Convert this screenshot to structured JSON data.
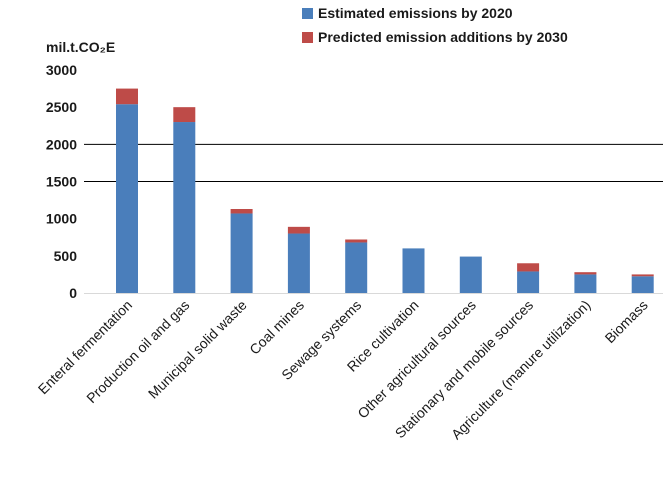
{
  "chart_data": {
    "type": "bar",
    "stacked": true,
    "unit_label": "mil.t.CO₂E",
    "categories": [
      "Enteral fermentation",
      "Production oil and gas",
      "Municipal solid waste",
      "Coal mines",
      "Sewage systems",
      "Rice cultivation",
      "Other agricultural sources",
      "Stationary and mobile sources",
      "Agriculture (manure utilization)",
      "Biomass"
    ],
    "series": [
      {
        "name": "Estimated emissions by 2020",
        "color": "#4a7ebb",
        "values": [
          2540,
          2300,
          1070,
          800,
          680,
          600,
          490,
          290,
          250,
          225
        ]
      },
      {
        "name": "Predicted emission additions by 2030",
        "color": "#be4b48",
        "values": [
          210,
          200,
          60,
          90,
          40,
          0,
          0,
          110,
          30,
          25
        ]
      }
    ],
    "ylim": [
      0,
      3000
    ],
    "yticks": [
      0,
      500,
      1000,
      1500,
      2000,
      2500,
      3000
    ],
    "gridlines": [
      2000,
      1500
    ],
    "legend_position": "top-right"
  }
}
